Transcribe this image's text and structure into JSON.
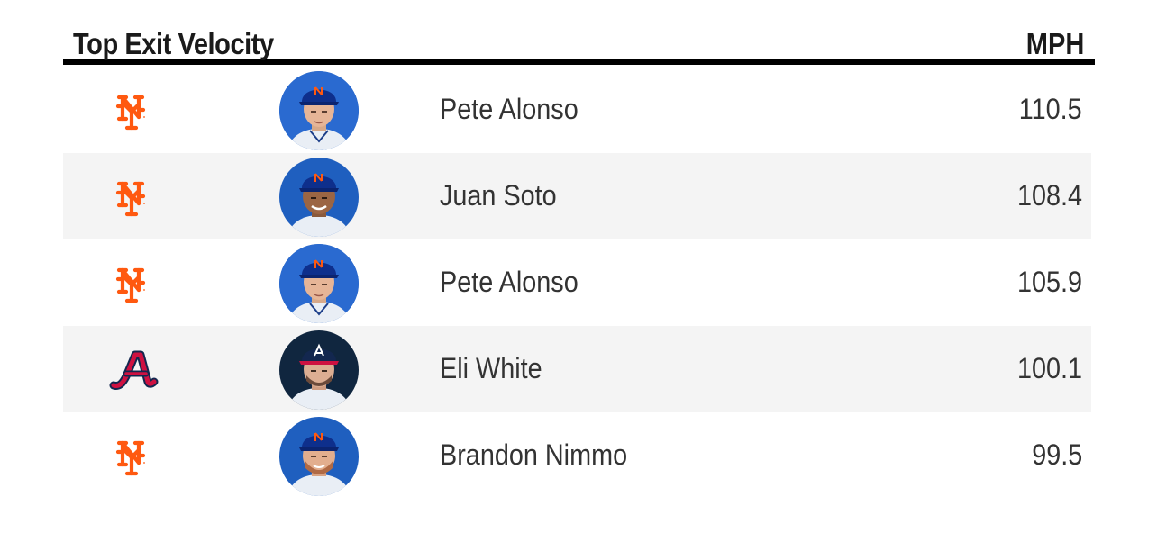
{
  "leaderboard": {
    "title": "Top Exit Velocity",
    "unit": "MPH",
    "colors": {
      "rule": "#000000",
      "alt_row": "#f4f4f4",
      "mets_orange": "#ff5910",
      "braves_navy": "#13274f",
      "braves_red": "#ce1141"
    },
    "rows": [
      {
        "team_icon": "mets-logo-icon",
        "player": "Pete Alonso",
        "value": "110.5"
      },
      {
        "team_icon": "mets-logo-icon",
        "player": "Juan Soto",
        "value": "108.4"
      },
      {
        "team_icon": "mets-logo-icon",
        "player": "Pete Alonso",
        "value": "105.9"
      },
      {
        "team_icon": "braves-logo-icon",
        "player": "Eli White",
        "value": "100.1"
      },
      {
        "team_icon": "mets-logo-icon",
        "player": "Brandon Nimmo",
        "value": "99.5"
      }
    ]
  }
}
